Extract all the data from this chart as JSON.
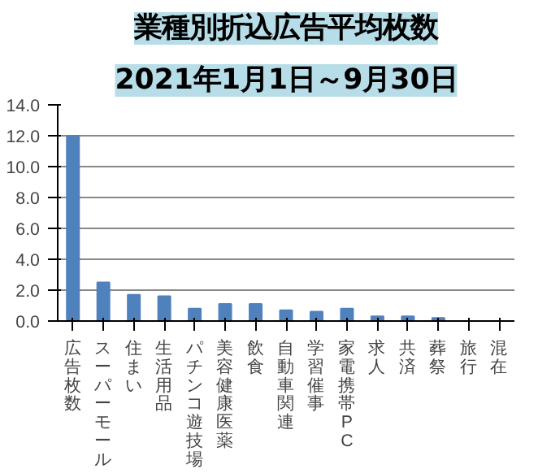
{
  "chart_data": {
    "type": "bar",
    "title": "業種別折込広告平均枚数",
    "subtitle": "2021年1月1日～9月30日",
    "categories": [
      "広告枚数",
      "スーパーモール",
      "住まい",
      "生活用品",
      "パチンコ遊技場",
      "美容健康医薬",
      "飲食",
      "自動車関連",
      "学習催事",
      "家電携帯PC",
      "求人",
      "共済",
      "葬祭",
      "旅行",
      "混在"
    ],
    "values": [
      12.0,
      2.5,
      1.7,
      1.6,
      0.8,
      1.1,
      1.1,
      0.7,
      0.6,
      0.8,
      0.3,
      0.3,
      0.2,
      0,
      0
    ],
    "color": "#4f81bd",
    "ylim": [
      0,
      14
    ],
    "yticks": [
      {
        "value": 0,
        "label": "0.0"
      },
      {
        "value": 2,
        "label": "2.0"
      },
      {
        "value": 4,
        "label": "4.0"
      },
      {
        "value": 6,
        "label": "6.0"
      },
      {
        "value": 8,
        "label": "8.0"
      },
      {
        "value": 10,
        "label": "10.0"
      },
      {
        "value": 12,
        "label": "12.0"
      },
      {
        "value": 14,
        "label": "14.0"
      }
    ],
    "grid": "y"
  }
}
